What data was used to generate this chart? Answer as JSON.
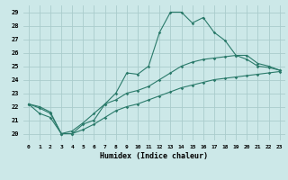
{
  "xlabel": "Humidex (Indice chaleur)",
  "bg_color": "#cce8e8",
  "grid_color": "#aacccc",
  "line_color": "#2a7a6a",
  "xlim": [
    -0.5,
    23.5
  ],
  "ylim": [
    19.5,
    29.5
  ],
  "xticks": [
    0,
    1,
    2,
    3,
    4,
    5,
    6,
    7,
    8,
    9,
    10,
    11,
    12,
    13,
    14,
    15,
    16,
    17,
    18,
    19,
    20,
    21,
    22,
    23
  ],
  "yticks": [
    20,
    21,
    22,
    23,
    24,
    25,
    26,
    27,
    28,
    29
  ],
  "line1_x": [
    0,
    1,
    2,
    3,
    4,
    5,
    6,
    7,
    8,
    9,
    10,
    11,
    12,
    13,
    14,
    15,
    16,
    17,
    18,
    19,
    20,
    21,
    22,
    23
  ],
  "line1_y": [
    22.2,
    21.9,
    21.5,
    20.0,
    20.0,
    20.7,
    21.0,
    22.2,
    23.0,
    24.5,
    24.4,
    25.0,
    27.5,
    29.0,
    29.0,
    28.2,
    28.6,
    27.5,
    26.9,
    25.8,
    25.5,
    25.0,
    24.9,
    24.7
  ],
  "line2_x": [
    0,
    1,
    2,
    3,
    4,
    5,
    6,
    7,
    8,
    9,
    10,
    11,
    12,
    13,
    14,
    15,
    16,
    17,
    18,
    19,
    20,
    21,
    22,
    23
  ],
  "line2_y": [
    22.2,
    22.0,
    21.6,
    20.0,
    20.2,
    20.8,
    21.5,
    22.2,
    22.5,
    23.0,
    23.2,
    23.5,
    24.0,
    24.5,
    25.0,
    25.3,
    25.5,
    25.6,
    25.7,
    25.8,
    25.8,
    25.2,
    25.0,
    24.7
  ],
  "line3_x": [
    0,
    1,
    2,
    3,
    4,
    5,
    6,
    7,
    8,
    9,
    10,
    11,
    12,
    13,
    14,
    15,
    16,
    17,
    18,
    19,
    20,
    21,
    22,
    23
  ],
  "line3_y": [
    22.2,
    21.5,
    21.2,
    20.0,
    20.0,
    20.3,
    20.7,
    21.2,
    21.7,
    22.0,
    22.2,
    22.5,
    22.8,
    23.1,
    23.4,
    23.6,
    23.8,
    24.0,
    24.1,
    24.2,
    24.3,
    24.4,
    24.5,
    24.6
  ]
}
